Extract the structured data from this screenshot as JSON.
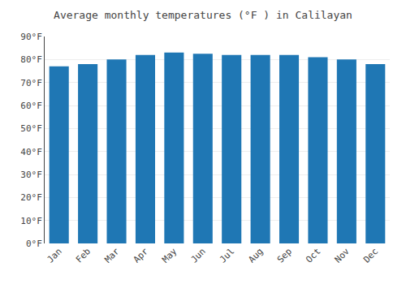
{
  "chart_data": {
    "type": "bar",
    "title": "Average monthly temperatures (°F ) in Calilayan",
    "categories": [
      "Jan",
      "Feb",
      "Mar",
      "Apr",
      "May",
      "Jun",
      "Jul",
      "Aug",
      "Sep",
      "Oct",
      "Nov",
      "Dec"
    ],
    "values": [
      77.0,
      78.0,
      80.0,
      82.0,
      83.0,
      82.5,
      82.0,
      82.0,
      82.0,
      81.0,
      80.0,
      78.0
    ],
    "ylim": [
      0,
      90
    ],
    "yticks": [
      {
        "value": 0,
        "label": "0°F"
      },
      {
        "value": 10,
        "label": "10°F"
      },
      {
        "value": 20,
        "label": "20°F"
      },
      {
        "value": 30,
        "label": "30°F"
      },
      {
        "value": 40,
        "label": "40°F"
      },
      {
        "value": 50,
        "label": "50°F"
      },
      {
        "value": 60,
        "label": "60°F"
      },
      {
        "value": 70,
        "label": "70°F"
      },
      {
        "value": 80,
        "label": "80°F"
      },
      {
        "value": 90,
        "label": "90°F"
      }
    ],
    "grid": true
  }
}
